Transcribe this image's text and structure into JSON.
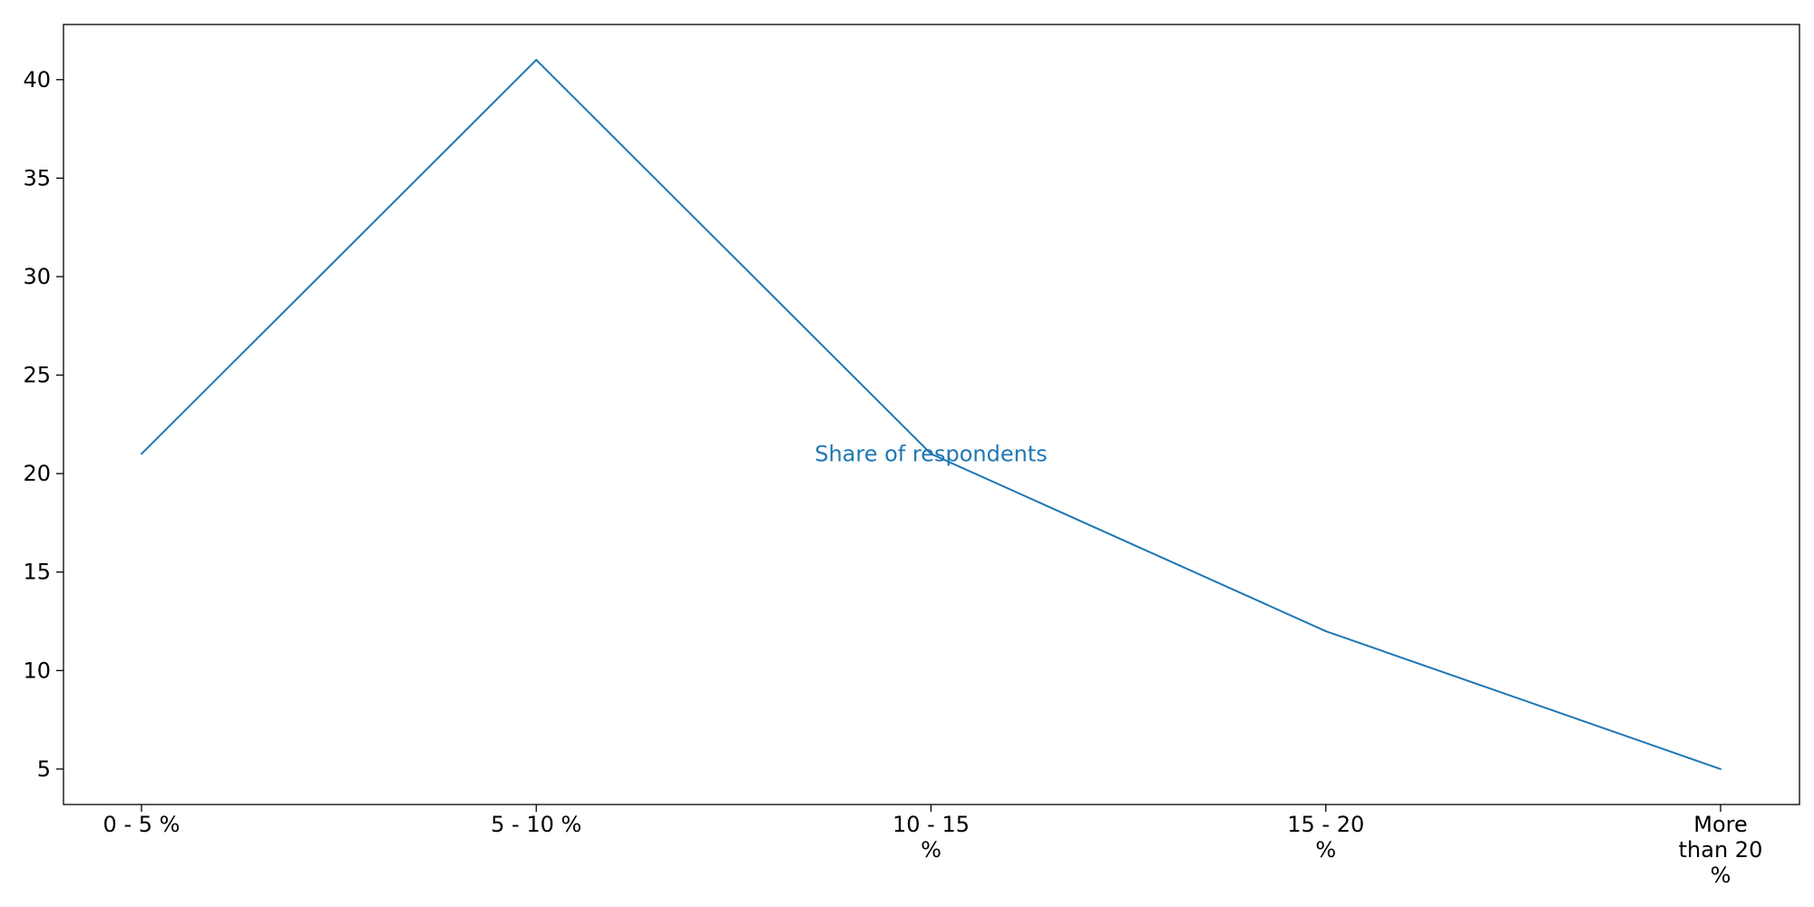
{
  "chart_data": {
    "type": "line",
    "categories": [
      "0 - 5 %",
      "5 - 10 %",
      "10 - 15 %",
      "15 - 20 %",
      "More than 20 %"
    ],
    "category_display_lines": [
      [
        "0 - 5 %"
      ],
      [
        "5 - 10 %"
      ],
      [
        "10 - 15",
        "%"
      ],
      [
        "15 - 20",
        "%"
      ],
      [
        "More",
        "than 20",
        "%"
      ]
    ],
    "series": [
      {
        "values": [
          21,
          41,
          21,
          12,
          5
        ]
      }
    ],
    "annotation": "Share of respondents",
    "y_ticks": [
      5,
      10,
      15,
      20,
      25,
      30,
      35,
      40
    ],
    "ylim": [
      3.2,
      42.8
    ],
    "title": "",
    "xlabel": "",
    "ylabel": "",
    "grid": false,
    "legend": "none",
    "line_color": "#1f77b4",
    "annotation_color": "#1f77b4"
  }
}
